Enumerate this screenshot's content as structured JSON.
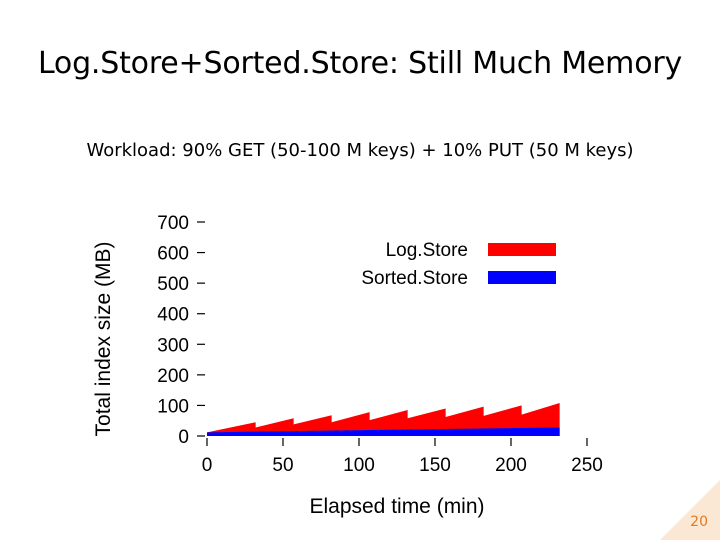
{
  "slide": {
    "title": "Log.Store+Sorted.Store: Still Much Memory",
    "subtitle": "Workload: 90% GET (50-100 M keys) + 10% PUT (50 M keys)",
    "page_number": "20"
  },
  "colors": {
    "logstore": "#ff0000",
    "sortedstore": "#0000ff",
    "accent": "#e07a22"
  },
  "chart_data": {
    "type": "area",
    "xlabel": "Elapsed time (min)",
    "ylabel": "Total index size (MB)",
    "xlim": [
      0,
      250
    ],
    "ylim": [
      0,
      700
    ],
    "xticks": [
      0,
      50,
      100,
      150,
      200,
      250
    ],
    "yticks": [
      0,
      100,
      200,
      300,
      400,
      500,
      600,
      700
    ],
    "grid": false,
    "legend_position": "top-right",
    "stacked": true,
    "series": [
      {
        "name": "Log.Store",
        "color": "#ff0000",
        "x": [
          0,
          32,
          32,
          57,
          57,
          82,
          82,
          107,
          107,
          132,
          132,
          157,
          157,
          182,
          182,
          207,
          207,
          232
        ],
        "y": [
          12,
          45,
          28,
          58,
          38,
          68,
          45,
          78,
          52,
          85,
          58,
          90,
          62,
          96,
          66,
          100,
          70,
          108
        ]
      },
      {
        "name": "Sorted.Store",
        "color": "#0000ff",
        "x": [
          0,
          232
        ],
        "y": [
          12,
          28
        ]
      }
    ]
  }
}
